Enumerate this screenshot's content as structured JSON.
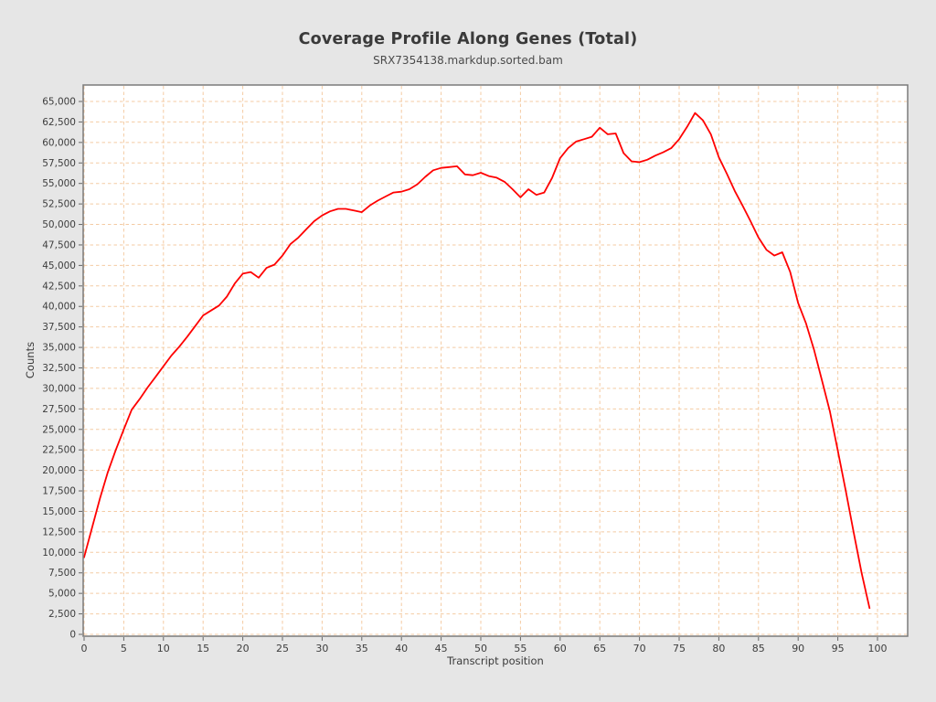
{
  "page": {
    "background": "#e6e6e6"
  },
  "chart": {
    "title": "Coverage Profile Along Genes (Total)",
    "subtitle": "SRX7354138.markdup.sorted.bam",
    "xlabel": "Transcript position",
    "ylabel": "Counts"
  },
  "chart_data": {
    "type": "line",
    "title": "Coverage Profile Along Genes (Total)",
    "subtitle": "SRX7354138.markdup.sorted.bam",
    "xlabel": "Transcript position",
    "ylabel": "Counts",
    "xlim": [
      0,
      100
    ],
    "ylim": [
      0,
      65000
    ],
    "x_ticks": [
      0,
      5,
      10,
      15,
      20,
      25,
      30,
      35,
      40,
      45,
      50,
      55,
      60,
      65,
      70,
      75,
      80,
      85,
      90,
      95,
      100
    ],
    "y_ticks": [
      0,
      2500,
      5000,
      7500,
      10000,
      12500,
      15000,
      17500,
      20000,
      22500,
      25000,
      27500,
      30000,
      32500,
      35000,
      37500,
      40000,
      42500,
      45000,
      47500,
      50000,
      52500,
      55000,
      57500,
      60000,
      62500,
      65000
    ],
    "grid": true,
    "grid_style": "dashed",
    "legend": "none",
    "colors": {
      "line": "#ff0000",
      "grid": "#f4cba3",
      "plot_bg": "#ffffff",
      "plot_border": "#7a7a7a",
      "tick_mark": "#666666",
      "tick_text": "#3d3d3d"
    },
    "series": [
      {
        "name": "SRX7354138.markdup.sorted.bam",
        "x_start": 0,
        "x_step": 1,
        "values": [
          9400,
          13000,
          16600,
          19800,
          22500,
          25000,
          27400,
          28700,
          30100,
          31400,
          32700,
          34000,
          35100,
          36300,
          37600,
          38900,
          39500,
          40100,
          41200,
          42800,
          44000,
          44200,
          43500,
          44700,
          45100,
          46200,
          47600,
          48400,
          49400,
          50400,
          51100,
          51600,
          51900,
          51900,
          51700,
          51500,
          52300,
          52900,
          53400,
          53900,
          54000,
          54300,
          54900,
          55800,
          56600,
          56900,
          57000,
          57100,
          56100,
          56000,
          56300,
          55900,
          55700,
          55200,
          54300,
          53300,
          54300,
          53600,
          53900,
          55700,
          58100,
          59300,
          60100,
          60400,
          60700,
          61800,
          61000,
          61100,
          58700,
          57700,
          57600,
          57900,
          58400,
          58800,
          59300,
          60400,
          61900,
          63600,
          62700,
          61000,
          58200,
          56200,
          54100,
          52300,
          50400,
          48400,
          46900,
          46200,
          46600,
          44200,
          40400,
          37900,
          34700,
          31000,
          27200,
          22400,
          17500,
          12400,
          7500,
          3200
        ]
      }
    ]
  }
}
